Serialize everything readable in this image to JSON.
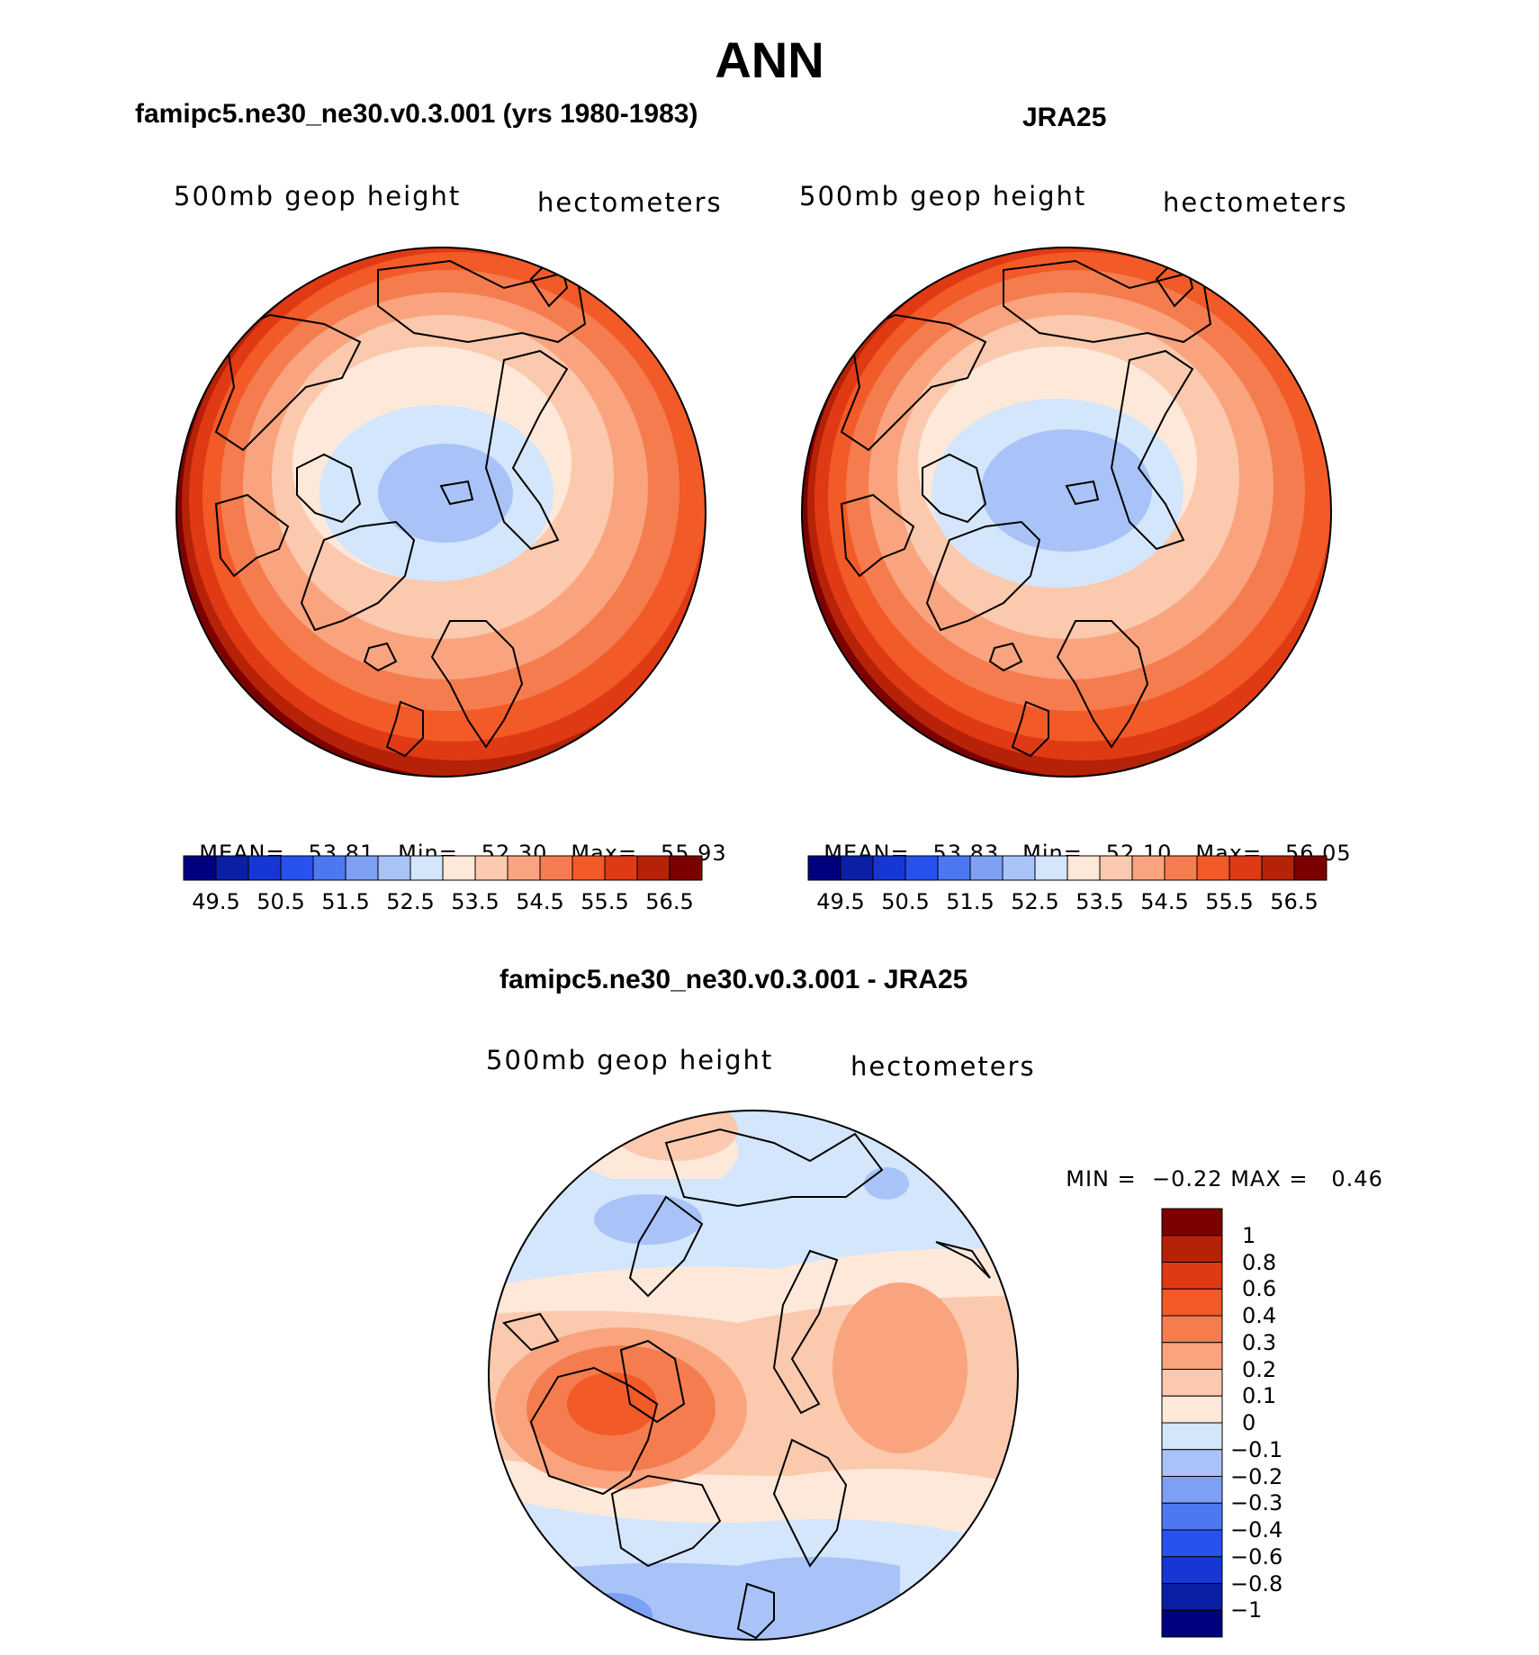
{
  "main_title": "ANN",
  "panels": [
    {
      "title": "famipc5.ne30_ne30.v0.3.001 (yrs 1980-1983)",
      "variable": "500mb geop height",
      "units": "hectometers",
      "stats": {
        "mean_label": "MEAN=",
        "mean": "53.81",
        "min_label": "Min=",
        "min": "52.30",
        "max_label": "Max=",
        "max": "55.93"
      }
    },
    {
      "title": "JRA25",
      "variable": "500mb geop height",
      "units": "hectometers",
      "stats": {
        "mean_label": "MEAN=",
        "mean": "53.83",
        "min_label": "Min=",
        "min": "52.10",
        "max_label": "Max=",
        "max": "56.05"
      }
    },
    {
      "title": "famipc5.ne30_ne30.v0.3.001 - JRA25",
      "variable": "500mb geop height",
      "units": "hectometers",
      "stats": {
        "min_label": "MIN =",
        "min": "−0.22",
        "max_label": "MAX =",
        "max": "0.46"
      }
    }
  ],
  "colorbar_top": {
    "colors": [
      "#00007f",
      "#0a1ea6",
      "#1636d6",
      "#2852f0",
      "#4c78f2",
      "#7ea0f4",
      "#a9c3f8",
      "#d4e6fb",
      "#fde8d9",
      "#fbc9ae",
      "#f9a47e",
      "#f57c4e",
      "#f25a28",
      "#e03a14",
      "#b52207",
      "#7d0000"
    ],
    "labels": [
      "49.5",
      "50.5",
      "51.5",
      "52.5",
      "53.5",
      "54.5",
      "55.5",
      "56.5"
    ]
  },
  "colorbar_diff": {
    "colors": [
      "#7d0000",
      "#b52207",
      "#e03a14",
      "#f25a28",
      "#f57c4e",
      "#f9a47e",
      "#fbc9ae",
      "#fde8d9",
      "#d4e6fb",
      "#a9c3f8",
      "#7ea0f4",
      "#4c78f2",
      "#2852f0",
      "#1636d6",
      "#0a1ea6",
      "#00007f"
    ],
    "labels": [
      "1",
      "0.8",
      "0.6",
      "0.4",
      "0.3",
      "0.2",
      "0.1",
      "0",
      "−0.1",
      "−0.2",
      "−0.3",
      "−0.4",
      "−0.6",
      "−0.8",
      "−1"
    ]
  },
  "chart_data": [
    {
      "type": "heatmap",
      "projection": "polar-stereographic-north",
      "title": "famipc5.ne30_ne30.v0.3.001 (yrs 1980-1983)",
      "variable": "500mb geop height",
      "units": "hectometers",
      "mean": 53.81,
      "min": 52.3,
      "max": 55.93,
      "contour_levels": [
        49.5,
        50,
        50.5,
        51,
        51.5,
        52,
        52.5,
        53,
        53.5,
        54,
        54.5,
        55,
        55.5,
        56,
        56.5
      ]
    },
    {
      "type": "heatmap",
      "projection": "polar-stereographic-north",
      "title": "JRA25",
      "variable": "500mb geop height",
      "units": "hectometers",
      "mean": 53.83,
      "min": 52.1,
      "max": 56.05,
      "contour_levels": [
        49.5,
        50,
        50.5,
        51,
        51.5,
        52,
        52.5,
        53,
        53.5,
        54,
        54.5,
        55,
        55.5,
        56,
        56.5
      ]
    },
    {
      "type": "heatmap",
      "projection": "polar-stereographic-north",
      "title": "famipc5.ne30_ne30.v0.3.001 - JRA25",
      "variable": "500mb geop height",
      "units": "hectometers",
      "min": -0.22,
      "max": 0.46,
      "contour_levels": [
        -1,
        -0.8,
        -0.6,
        -0.4,
        -0.3,
        -0.2,
        -0.1,
        0,
        0.1,
        0.2,
        0.3,
        0.4,
        0.6,
        0.8,
        1
      ]
    }
  ]
}
